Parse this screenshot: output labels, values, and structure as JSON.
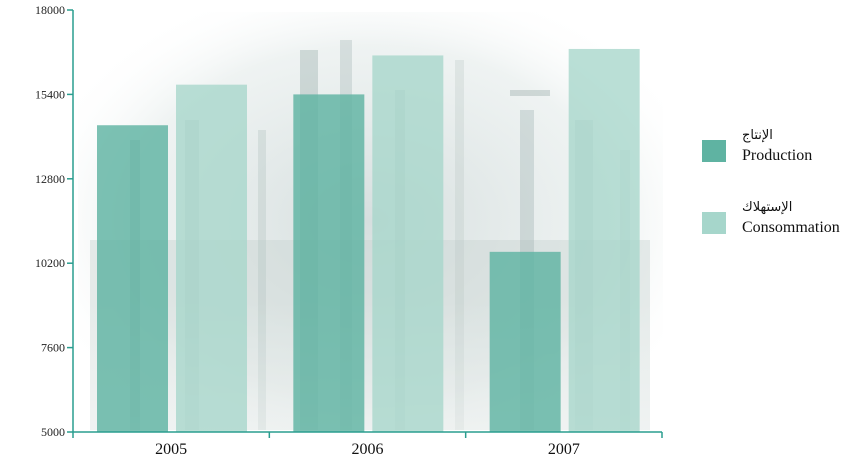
{
  "chart_data": {
    "type": "bar",
    "categories": [
      "2005",
      "2006",
      "2007"
    ],
    "series": [
      {
        "name": "Production",
        "name_ar": "الإنتاج",
        "color": "#5fb3a2",
        "values": [
          14450,
          15400,
          10550
        ]
      },
      {
        "name": "Consommation",
        "name_ar": "الإستهلاك",
        "color": "#a6d6cb",
        "values": [
          15700,
          16600,
          16800
        ]
      }
    ],
    "y_ticks": [
      5000,
      7600,
      10200,
      12800,
      15400,
      18000
    ],
    "ylim": [
      5000,
      18000
    ],
    "axis_color": "#2a9d8f",
    "legend_position": "right",
    "grid": false,
    "title": "",
    "xlabel": "",
    "ylabel": ""
  }
}
